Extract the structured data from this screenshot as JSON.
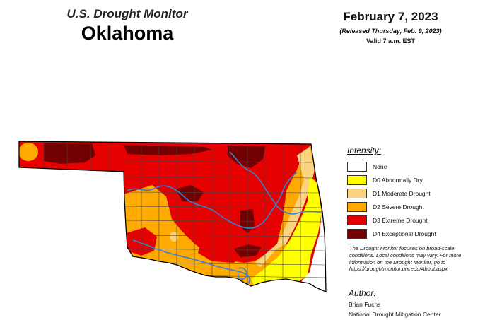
{
  "header": {
    "program": "U.S. Drought Monitor",
    "state": "Oklahoma",
    "date": "February 7, 2023",
    "released": "(Released Thursday, Feb. 9, 2023)",
    "valid": "Valid 7 a.m. EST"
  },
  "legend": {
    "title": "Intensity:",
    "items": [
      {
        "label": "None",
        "color": "#ffffff"
      },
      {
        "label": "D0 Abnormally Dry",
        "color": "#ffff00"
      },
      {
        "label": "D1 Moderate Drought",
        "color": "#fcd37f"
      },
      {
        "label": "D2 Severe Drought",
        "color": "#ffaa00"
      },
      {
        "label": "D3 Extreme Drought",
        "color": "#e60000"
      },
      {
        "label": "D4 Exceptional Drought",
        "color": "#730000"
      }
    ]
  },
  "note": "The Drought Monitor focuses on broad-scale conditions. Local conditions may vary. For more information on the Drought Monitor, go to https://droughtmonitor.unl.edu/About.aspx",
  "author": {
    "title": "Author:",
    "name": "Brian Fuchs",
    "org": "National Drought Mitigation Center"
  },
  "colors": {
    "none": "#ffffff",
    "d0": "#ffff00",
    "d1": "#fcd37f",
    "d2": "#ffaa00",
    "d3": "#e60000",
    "d4": "#730000",
    "river": "#3a7fd0",
    "county": "#444444"
  }
}
